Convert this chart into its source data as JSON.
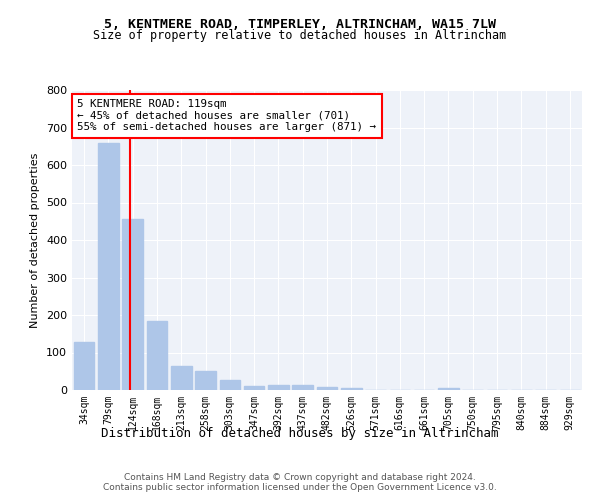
{
  "title1": "5, KENTMERE ROAD, TIMPERLEY, ALTRINCHAM, WA15 7LW",
  "title2": "Size of property relative to detached houses in Altrincham",
  "xlabel": "Distribution of detached houses by size in Altrincham",
  "ylabel": "Number of detached properties",
  "categories": [
    "34sqm",
    "79sqm",
    "124sqm",
    "168sqm",
    "213sqm",
    "258sqm",
    "303sqm",
    "347sqm",
    "392sqm",
    "437sqm",
    "482sqm",
    "526sqm",
    "571sqm",
    "616sqm",
    "661sqm",
    "705sqm",
    "750sqm",
    "795sqm",
    "840sqm",
    "884sqm",
    "929sqm"
  ],
  "values": [
    128,
    660,
    455,
    183,
    65,
    50,
    28,
    10,
    13,
    13,
    8,
    5,
    0,
    0,
    0,
    5,
    0,
    0,
    0,
    0,
    0
  ],
  "bar_color": "#aec6e8",
  "property_line_x": 1.87,
  "annotation_line1": "5 KENTMERE ROAD: 119sqm",
  "annotation_line2": "← 45% of detached houses are smaller (701)",
  "annotation_line3": "55% of semi-detached houses are larger (871) →",
  "footer1": "Contains HM Land Registry data © Crown copyright and database right 2024.",
  "footer2": "Contains public sector information licensed under the Open Government Licence v3.0.",
  "background_color": "#eef2f9",
  "ylim": [
    0,
    800
  ],
  "yticks": [
    0,
    100,
    200,
    300,
    400,
    500,
    600,
    700,
    800
  ]
}
